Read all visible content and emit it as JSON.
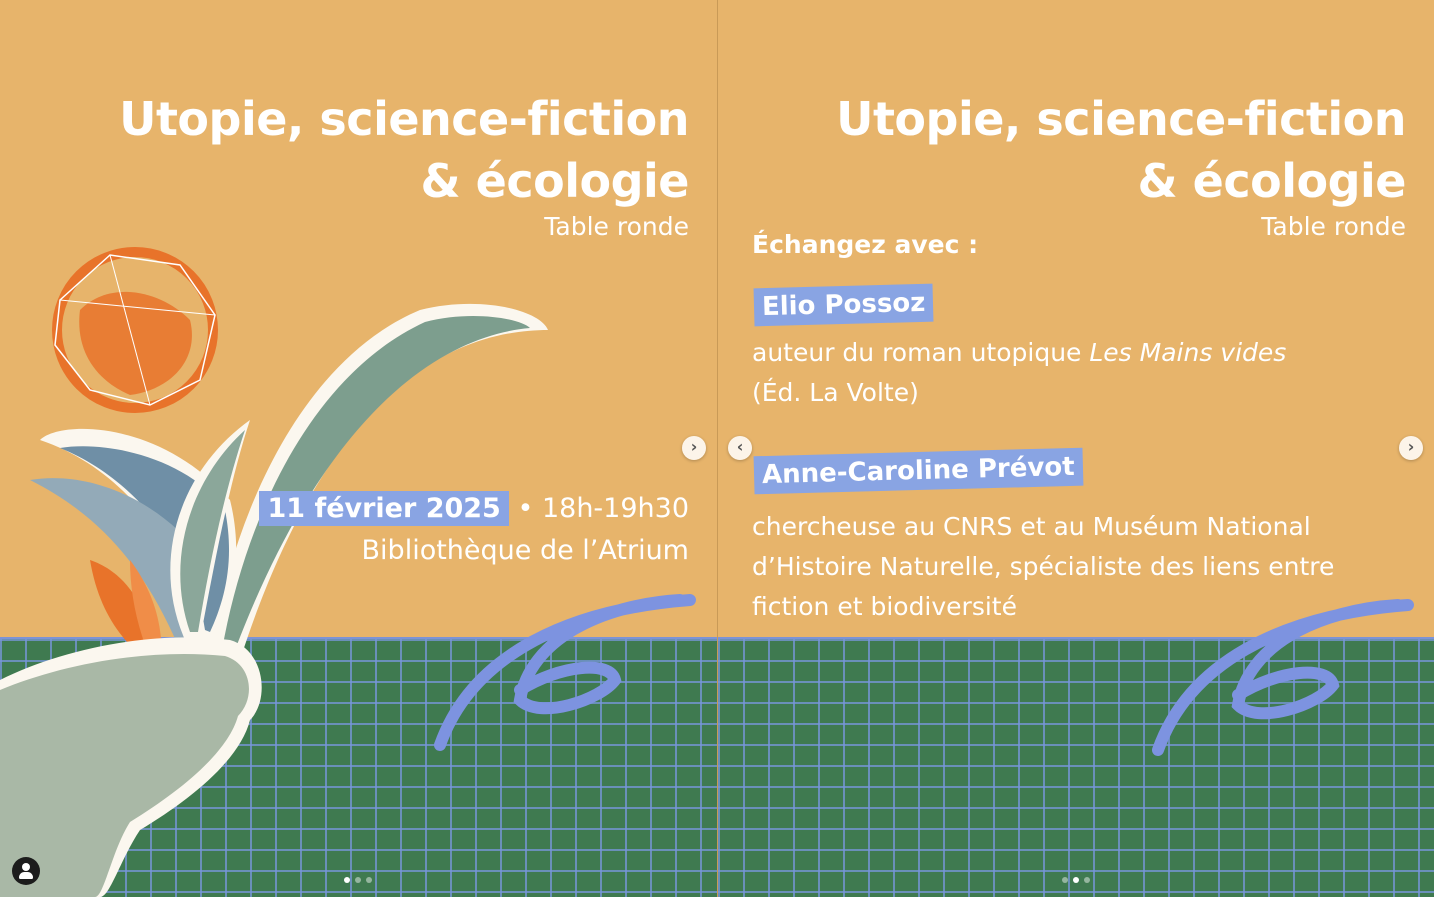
{
  "slides": [
    {
      "title_line1": "Utopie, science-fiction",
      "title_line2": "& écologie",
      "subtitle": "Table ronde",
      "date": "11 février 2025",
      "time": "• 18h-19h30",
      "venue": "Bibliothèque de l’Atrium"
    },
    {
      "title_line1": "Utopie, science-fiction",
      "title_line2": "& écologie",
      "subtitle": "Table ronde",
      "intro": "Échangez avec :",
      "speakers": [
        {
          "name": "Elio Possoz",
          "desc_prefix": "auteur du roman utopique ",
          "desc_italic": "Les Mains vides",
          "desc_suffix": "(Éd. La Volte)"
        },
        {
          "name": "Anne-Caroline Prévot",
          "desc": "chercheuse au CNRS et au Muséum National d’Histoire Naturelle, spécialiste des liens entre fiction et biodiversité"
        }
      ]
    }
  ],
  "navigation": {
    "next_icon": "chevron-right-icon",
    "prev_icon": "chevron-left-icon",
    "next_glyph": "›",
    "prev_glyph": "‹"
  },
  "carousel": {
    "left_active_dot": 1,
    "right_active_dot": 2,
    "dot_count": 3
  },
  "colors": {
    "background": "#e7b46b",
    "ground": "#3f7a50",
    "grid": "#7d93d6",
    "highlight": "#89a4e3",
    "text": "#ffffff",
    "accent_orange": "#e8732a"
  }
}
